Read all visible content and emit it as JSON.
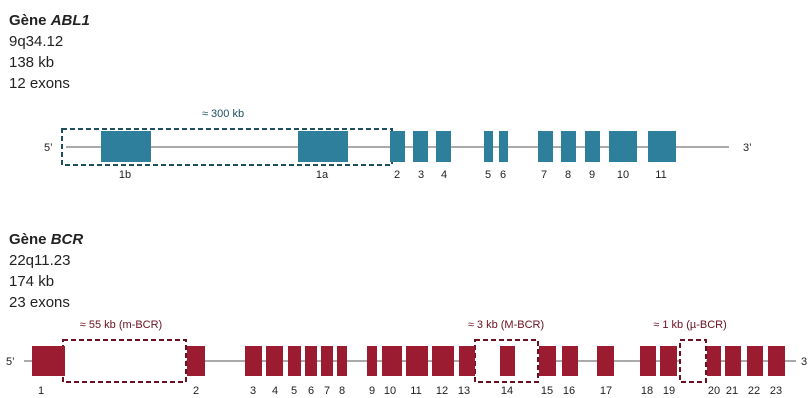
{
  "abl1": {
    "title_prefix": "Gène ",
    "gene": "ABL1",
    "locus": "9q34.12",
    "size": "138 kb",
    "exon_count": "12 exons",
    "color": "#2e7f9b",
    "five_prime": "5’",
    "three_prime": "3’",
    "exon_labels": [
      "1b",
      "1a",
      "2",
      "3",
      "4",
      "5",
      "6",
      "7",
      "8",
      "9",
      "10",
      "11"
    ],
    "regions": [
      {
        "label": "≈ 300 kb"
      }
    ]
  },
  "bcr": {
    "title_prefix": "Gène ",
    "gene": "BCR",
    "locus": "22q11.23",
    "size": "174 kb",
    "exon_count": "23 exons",
    "color": "#9b1c31",
    "five_prime": "5’",
    "three_prime": "3",
    "exon_labels": [
      "1",
      "2",
      "3",
      "4",
      "5",
      "6",
      "7",
      "8",
      "9",
      "10",
      "11",
      "12",
      "13",
      "14",
      "15",
      "16",
      "17",
      "18",
      "19",
      "20",
      "21",
      "22",
      "23"
    ],
    "regions": [
      {
        "label": "≈ 55 kb (m-BCR)"
      },
      {
        "label": "≈ 3 kb (M-BCR)"
      },
      {
        "label": "≈ 1 kb (µ-BCR)"
      }
    ]
  }
}
